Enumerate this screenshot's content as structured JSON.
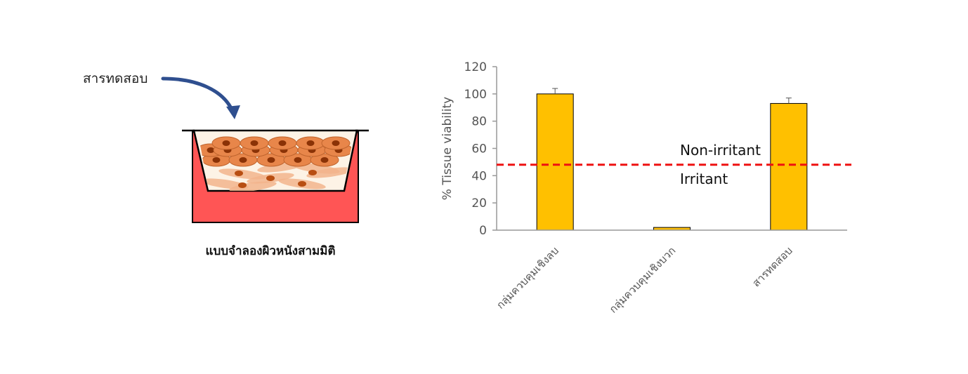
{
  "illustration": {
    "test_substance_label": "สารทดสอบ",
    "caption": "แบบจำลองผิวหนังสามมิติ",
    "colors": {
      "medium": "#ff5555",
      "cells": "#e8864a",
      "nuclei": "#8a3206",
      "arrow": "#2f4f8f"
    }
  },
  "chart_data": {
    "type": "bar",
    "categories": [
      "กลุ่มควบคุมเชิงลบ",
      "กลุ่มควบคุมเชิงบวก",
      "สารทดสอบ"
    ],
    "values": [
      100,
      2,
      93
    ],
    "error": [
      4,
      0,
      4
    ],
    "ylabel": "% Tissue viability",
    "xlabel": "",
    "ylim": [
      0,
      120
    ],
    "yticks": [
      0,
      20,
      40,
      60,
      80,
      100,
      120
    ],
    "threshold": {
      "value": 48,
      "color": "#ee1111",
      "above_label": "Non-irritant",
      "below_label": "Irritant"
    },
    "bar_color": "#ffc000",
    "grid": false
  }
}
